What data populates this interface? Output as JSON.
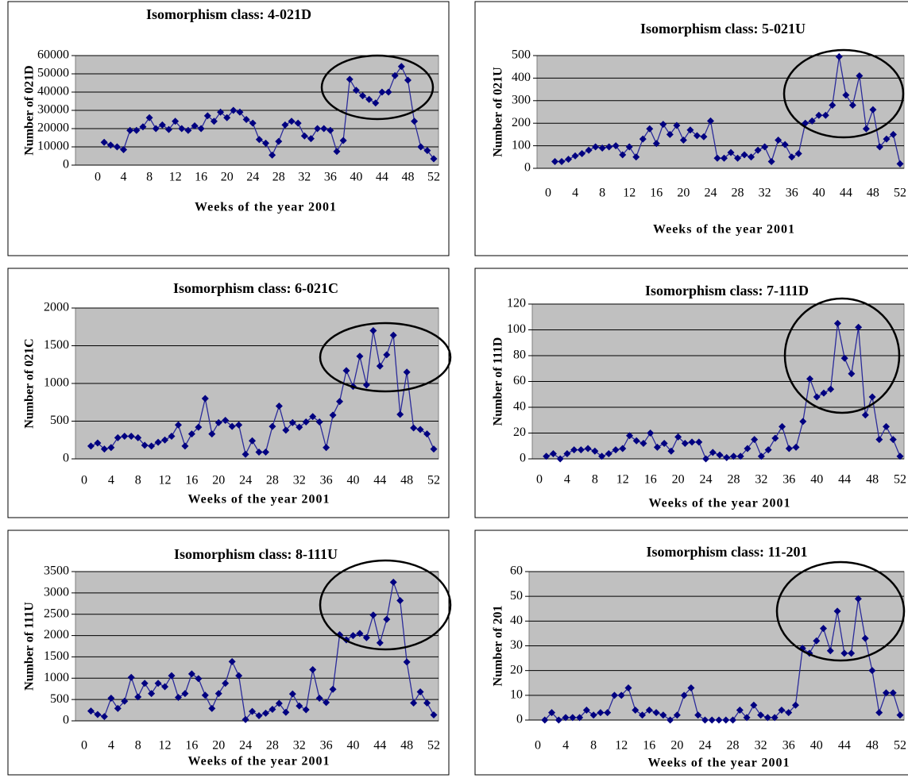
{
  "chart_data": [
    {
      "type": "line",
      "title": "Isomorphism class: 4-021D",
      "ylabel": "Number of 021D",
      "xlabel": "Weeks of the year 2001",
      "x": [
        1,
        2,
        3,
        4,
        5,
        6,
        7,
        8,
        9,
        10,
        11,
        12,
        13,
        14,
        15,
        16,
        17,
        18,
        19,
        20,
        21,
        22,
        23,
        24,
        25,
        26,
        27,
        28,
        29,
        30,
        31,
        32,
        33,
        34,
        35,
        36,
        37,
        38,
        39,
        40,
        41,
        42,
        43,
        44,
        45,
        46,
        47,
        48,
        49,
        50,
        51,
        52
      ],
      "series": [
        {
          "color": "#000080",
          "values": [
            12500,
            11000,
            10000,
            8500,
            19000,
            19000,
            21000,
            26000,
            20000,
            22000,
            19500,
            24000,
            20000,
            19000,
            21500,
            20000,
            27000,
            24000,
            29000,
            26000,
            30000,
            29000,
            25000,
            23000,
            14000,
            12000,
            5500,
            13000,
            22000,
            24000,
            23000,
            16000,
            14500,
            20000,
            20000,
            19000,
            7500,
            13500,
            47000,
            41000,
            38000,
            36000,
            34000,
            40000,
            40000,
            49000,
            54000,
            46500,
            24000,
            10000,
            8000,
            3500
          ]
        }
      ],
      "xlim": [
        0,
        52
      ],
      "xticks": [
        0,
        4,
        8,
        12,
        16,
        20,
        24,
        28,
        32,
        36,
        40,
        44,
        48,
        52
      ],
      "ylim": [
        0,
        60000
      ],
      "yticks": [
        0,
        10000,
        20000,
        30000,
        40000,
        50000,
        60000
      ],
      "grid": true
    },
    {
      "type": "line",
      "title": "Isomorphism class: 5-021U",
      "ylabel": "Number of 021U",
      "xlabel": "Weeks of the year 2001",
      "x": [
        1,
        2,
        3,
        4,
        5,
        6,
        7,
        8,
        9,
        10,
        11,
        12,
        13,
        14,
        15,
        16,
        17,
        18,
        19,
        20,
        21,
        22,
        23,
        24,
        25,
        26,
        27,
        28,
        29,
        30,
        31,
        32,
        33,
        34,
        35,
        36,
        37,
        38,
        39,
        40,
        41,
        42,
        43,
        44,
        45,
        46,
        47,
        48,
        49,
        50,
        51,
        52
      ],
      "series": [
        {
          "color": "#000080",
          "values": [
            30,
            30,
            40,
            55,
            65,
            80,
            95,
            90,
            95,
            100,
            60,
            95,
            50,
            130,
            175,
            110,
            195,
            150,
            190,
            125,
            170,
            145,
            140,
            210,
            45,
            45,
            70,
            45,
            60,
            50,
            80,
            95,
            30,
            125,
            105,
            50,
            65,
            200,
            210,
            235,
            235,
            280,
            495,
            325,
            280,
            410,
            175,
            260,
            95,
            130,
            150,
            20
          ]
        }
      ],
      "xlim": [
        0,
        52
      ],
      "xticks": [
        0,
        4,
        8,
        12,
        16,
        20,
        24,
        28,
        32,
        36,
        40,
        44,
        48,
        52
      ],
      "ylim": [
        0,
        500
      ],
      "yticks": [
        0,
        100,
        200,
        300,
        400,
        500
      ],
      "grid": true
    },
    {
      "type": "line",
      "title": "Isomorphism class: 6-021C",
      "ylabel": "Number of 021C",
      "xlabel": "Weeks of the year 2001",
      "x": [
        1,
        2,
        3,
        4,
        5,
        6,
        7,
        8,
        9,
        10,
        11,
        12,
        13,
        14,
        15,
        16,
        17,
        18,
        19,
        20,
        21,
        22,
        23,
        24,
        25,
        26,
        27,
        28,
        29,
        30,
        31,
        32,
        33,
        34,
        35,
        36,
        37,
        38,
        39,
        40,
        41,
        42,
        43,
        44,
        45,
        46,
        47,
        48,
        49,
        50,
        51,
        52
      ],
      "series": [
        {
          "color": "#000080",
          "values": [
            170,
            210,
            130,
            150,
            280,
            300,
            300,
            280,
            180,
            170,
            220,
            250,
            300,
            450,
            170,
            330,
            420,
            800,
            330,
            480,
            510,
            430,
            450,
            60,
            240,
            90,
            90,
            430,
            700,
            380,
            480,
            420,
            490,
            560,
            490,
            150,
            580,
            760,
            1170,
            960,
            1360,
            980,
            1700,
            1230,
            1380,
            1640,
            590,
            1150,
            410,
            390,
            330,
            130
          ]
        }
      ],
      "xlim": [
        0,
        52
      ],
      "xticks": [
        0,
        4,
        8,
        12,
        16,
        20,
        24,
        28,
        32,
        36,
        40,
        44,
        48,
        52
      ],
      "ylim": [
        0,
        2000
      ],
      "yticks": [
        0,
        500,
        1000,
        1500,
        2000
      ],
      "grid": true
    },
    {
      "type": "line",
      "title": "Isomorphism class: 7-111D",
      "ylabel": "Number of 111D",
      "xlabel": "Weeks of the year 2001",
      "x": [
        1,
        2,
        3,
        4,
        5,
        6,
        7,
        8,
        9,
        10,
        11,
        12,
        13,
        14,
        15,
        16,
        17,
        18,
        19,
        20,
        21,
        22,
        23,
        24,
        25,
        26,
        27,
        28,
        29,
        30,
        31,
        32,
        33,
        34,
        35,
        36,
        37,
        38,
        39,
        40,
        41,
        42,
        43,
        44,
        45,
        46,
        47,
        48,
        49,
        50,
        51,
        52
      ],
      "series": [
        {
          "color": "#000080",
          "values": [
            2,
            4,
            0,
            4,
            7,
            7,
            8,
            6,
            2,
            4,
            7,
            8,
            18,
            14,
            12,
            20,
            9,
            12,
            6,
            17,
            12,
            13,
            13,
            0,
            5,
            3,
            1,
            2,
            2,
            8,
            15,
            2,
            7,
            16,
            25,
            8,
            9,
            29,
            62,
            48,
            51,
            54,
            105,
            78,
            66,
            102,
            34,
            48,
            15,
            25,
            15,
            2
          ]
        }
      ],
      "xlim": [
        0,
        52
      ],
      "xticks": [
        0,
        4,
        8,
        12,
        16,
        20,
        24,
        28,
        32,
        36,
        40,
        44,
        48,
        52
      ],
      "ylim": [
        0,
        120
      ],
      "yticks": [
        0,
        20,
        40,
        60,
        80,
        100,
        120
      ],
      "grid": true
    },
    {
      "type": "line",
      "title": "Isomorphism class: 8-111U",
      "ylabel": "Number of 111U",
      "xlabel": "Weeks of the year 2001",
      "x": [
        1,
        2,
        3,
        4,
        5,
        6,
        7,
        8,
        9,
        10,
        11,
        12,
        13,
        14,
        15,
        16,
        17,
        18,
        19,
        20,
        21,
        22,
        23,
        24,
        25,
        26,
        27,
        28,
        29,
        30,
        31,
        32,
        33,
        34,
        35,
        36,
        37,
        38,
        39,
        40,
        41,
        42,
        43,
        44,
        45,
        46,
        47,
        48,
        49,
        50,
        51,
        52
      ],
      "series": [
        {
          "color": "#000080",
          "values": [
            230,
            150,
            100,
            530,
            290,
            460,
            1020,
            560,
            880,
            640,
            880,
            800,
            1060,
            550,
            640,
            1100,
            990,
            600,
            290,
            640,
            880,
            1390,
            1060,
            30,
            220,
            120,
            180,
            270,
            410,
            200,
            630,
            350,
            260,
            1200,
            530,
            430,
            740,
            2020,
            1900,
            2000,
            2050,
            1950,
            2480,
            1830,
            2380,
            3250,
            2820,
            1380,
            420,
            680,
            420,
            140
          ]
        }
      ],
      "xlim": [
        0,
        52
      ],
      "xticks": [
        0,
        4,
        8,
        12,
        16,
        20,
        24,
        28,
        32,
        36,
        40,
        44,
        48,
        52
      ],
      "ylim": [
        0,
        3500
      ],
      "yticks": [
        0,
        500,
        1000,
        1500,
        2000,
        2500,
        3000,
        3500
      ],
      "grid": true
    },
    {
      "type": "line",
      "title": "Isomorphism class: 11-201",
      "ylabel": "Number of 201",
      "xlabel": "Weeks of the year 2001",
      "x": [
        1,
        2,
        3,
        4,
        5,
        6,
        7,
        8,
        9,
        10,
        11,
        12,
        13,
        14,
        15,
        16,
        17,
        18,
        19,
        20,
        21,
        22,
        23,
        24,
        25,
        26,
        27,
        28,
        29,
        30,
        31,
        32,
        33,
        34,
        35,
        36,
        37,
        38,
        39,
        40,
        41,
        42,
        43,
        44,
        45,
        46,
        47,
        48,
        49,
        50,
        51,
        52
      ],
      "series": [
        {
          "color": "#000080",
          "values": [
            0,
            3,
            0,
            1,
            1,
            1,
            4,
            2,
            3,
            3,
            10,
            10,
            13,
            4,
            2,
            4,
            3,
            2,
            0,
            2,
            10,
            13,
            2,
            0,
            0,
            0,
            0,
            0,
            4,
            1,
            6,
            2,
            1,
            1,
            4,
            3,
            6,
            29,
            27,
            32,
            37,
            28,
            44,
            27,
            27,
            49,
            33,
            20,
            3,
            11,
            11,
            2
          ]
        }
      ],
      "xlim": [
        0,
        52
      ],
      "xticks": [
        0,
        4,
        8,
        12,
        16,
        20,
        24,
        28,
        32,
        36,
        40,
        44,
        48,
        52
      ],
      "ylim": [
        0,
        60
      ],
      "yticks": [
        0,
        10,
        20,
        30,
        40,
        50,
        60
      ],
      "grid": true
    }
  ]
}
